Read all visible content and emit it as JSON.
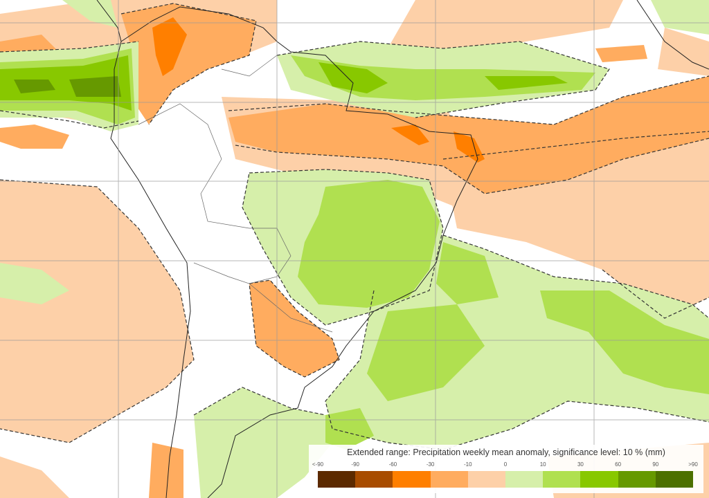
{
  "legend": {
    "title": "Extended range: Precipitation weekly mean anomaly, significance level: 10 % (mm)",
    "ticks": [
      "<-90",
      "-90",
      "-60",
      "-30",
      "-10",
      "0",
      "10",
      "30",
      "60",
      "90",
      ">90"
    ],
    "colors": [
      "#5c2a00",
      "#a84c00",
      "#ff7f00",
      "#ffac5f",
      "#fdd0a8",
      "#d6efaa",
      "#b0e050",
      "#88c800",
      "#669900",
      "#4c7000"
    ]
  },
  "map": {
    "region": "South America",
    "variable": "precipitation anomaly",
    "significance_contour": "dashed",
    "gridlines": true
  }
}
